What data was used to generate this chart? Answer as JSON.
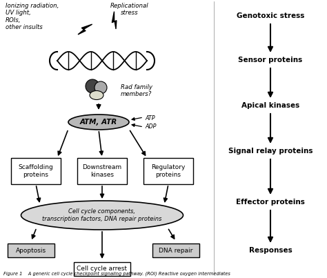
{
  "bg_color": "#ffffff",
  "ionizing_text": "Ionizing radiation,\nUV light,\nROIs,\nother insults",
  "replication_text": "Replicational\nstress",
  "rad_family_text": "Rad family\nmembers?",
  "atm_atr_text": "ATM, ATR",
  "atp_text": "ATP",
  "adp_text": "ADP",
  "scaffolding_text": "Scaffolding\nproteins",
  "downstream_text": "Downstream\nkinases",
  "regulatory_text": "Regulatory\nproteins",
  "cell_cycle_text": "Cell cycle components,\ntranscription factors, DNA repair proteins",
  "apoptosis_text": "Apoptosis",
  "dna_repair_text": "DNA repair",
  "cell_cycle_arrest_text": "Cell cycle arrest",
  "right_items": [
    "Genotoxic stress",
    "Sensor proteins",
    "Apical kinases",
    "Signal relay proteins",
    "Effector proteins",
    "Responses"
  ],
  "caption": "Figure 1    A generic cell cycle checkpoint signaling pathway. (ROI) Reactive oxygen intermediates"
}
